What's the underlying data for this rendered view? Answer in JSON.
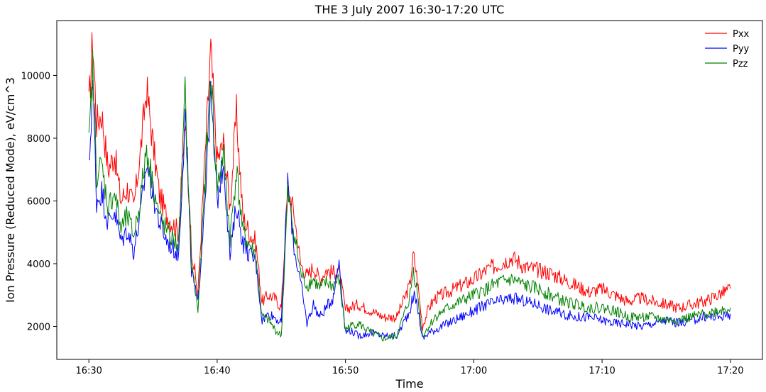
{
  "chart_data": {
    "type": "line",
    "title": "THE 3 July 2007 16:30-17:20 UTC",
    "xlabel": "Time",
    "ylabel": "Ion Pressure (Reduced Mode), eV/cm^3",
    "x_unit": "minutes after 16:30 UTC",
    "xlim": [
      -2.5,
      52.5
    ],
    "ylim": [
      950,
      11750
    ],
    "x_ticks": [
      {
        "value": 0,
        "label": "16:30"
      },
      {
        "value": 10,
        "label": "16:40"
      },
      {
        "value": 20,
        "label": "16:50"
      },
      {
        "value": 30,
        "label": "17:00"
      },
      {
        "value": 40,
        "label": "17:10"
      },
      {
        "value": 50,
        "label": "17:20"
      }
    ],
    "y_ticks": [
      {
        "value": 2000,
        "label": "2000"
      },
      {
        "value": 4000,
        "label": "4000"
      },
      {
        "value": 6000,
        "label": "6000"
      },
      {
        "value": 8000,
        "label": "8000"
      },
      {
        "value": 10000,
        "label": "10000"
      }
    ],
    "grid": false,
    "legend_position": "top-right",
    "x": [
      0,
      0.3,
      0.6,
      1,
      1.5,
      2,
      2.5,
      3,
      3.5,
      4,
      4.5,
      5,
      5.5,
      6,
      6.5,
      7,
      7.5,
      8,
      8.5,
      9,
      9.5,
      10,
      10.5,
      11,
      11.5,
      12,
      12.5,
      13,
      13.5,
      14,
      14.5,
      15,
      15.5,
      16,
      16.5,
      17,
      17.5,
      18,
      18.5,
      19,
      19.5,
      20,
      20.3,
      21,
      22,
      23,
      24,
      25,
      25.3,
      25.6,
      26,
      26.5,
      27,
      28,
      29,
      30,
      31,
      32,
      33,
      34,
      35,
      36,
      37,
      38,
      39,
      40,
      41,
      42,
      43,
      44,
      45,
      46,
      47,
      48,
      49,
      50
    ],
    "series": [
      {
        "name": "Pxx",
        "color": "#ff0000",
        "values": [
          9000,
          11200,
          8500,
          8800,
          7000,
          7500,
          6000,
          6400,
          5800,
          7500,
          9600,
          7800,
          6200,
          5600,
          5300,
          5000,
          8500,
          4500,
          3000,
          7000,
          10800,
          7300,
          7800,
          5800,
          8800,
          5500,
          5000,
          4700,
          2800,
          3000,
          2900,
          2600,
          6400,
          5600,
          4000,
          3600,
          3900,
          3500,
          3800,
          3700,
          3800,
          2500,
          2600,
          2700,
          2500,
          2300,
          2300,
          3300,
          4300,
          3500,
          2000,
          2600,
          2900,
          3100,
          3300,
          3500,
          3800,
          4000,
          4200,
          3900,
          3800,
          3700,
          3500,
          3300,
          3100,
          3200,
          3000,
          2800,
          2900,
          2800,
          2700,
          2600,
          2700,
          2800,
          3000,
          3200
        ]
      },
      {
        "name": "Pyy",
        "color": "#0000ff",
        "values": [
          6900,
          9800,
          6000,
          6300,
          5300,
          5700,
          4700,
          5100,
          4400,
          5500,
          7200,
          6200,
          5300,
          4800,
          4500,
          4300,
          8800,
          3800,
          2700,
          5800,
          9300,
          6000,
          7300,
          4200,
          5900,
          4700,
          4300,
          4100,
          2200,
          2400,
          2300,
          2100,
          6600,
          4500,
          3400,
          2100,
          2700,
          2300,
          2600,
          2900,
          4100,
          1800,
          1900,
          1700,
          1800,
          1700,
          1700,
          2500,
          3000,
          2700,
          1600,
          1800,
          1900,
          2100,
          2300,
          2500,
          2700,
          2800,
          2900,
          2800,
          2700,
          2500,
          2400,
          2300,
          2300,
          2200,
          2100,
          2100,
          2000,
          2100,
          2200,
          2100,
          2200,
          2300,
          2300,
          2400
        ]
      },
      {
        "name": "Pzz",
        "color": "#008000",
        "values": [
          7700,
          10200,
          6900,
          7100,
          5800,
          6300,
          5100,
          5500,
          4900,
          6000,
          7700,
          6500,
          5500,
          5100,
          4800,
          4600,
          9400,
          4000,
          2500,
          6200,
          10100,
          6400,
          7500,
          4800,
          7000,
          5000,
          4600,
          4300,
          2300,
          2200,
          1900,
          1700,
          6200,
          5000,
          3700,
          3300,
          3500,
          3200,
          3400,
          3300,
          3500,
          1900,
          2000,
          2100,
          1800,
          1600,
          1700,
          2900,
          3800,
          3100,
          1700,
          2000,
          2300,
          2600,
          2800,
          3000,
          3200,
          3400,
          3500,
          3300,
          3200,
          3000,
          2800,
          2700,
          2600,
          2600,
          2500,
          2300,
          2300,
          2300,
          2200,
          2200,
          2300,
          2400,
          2500,
          2600
        ]
      }
    ]
  }
}
